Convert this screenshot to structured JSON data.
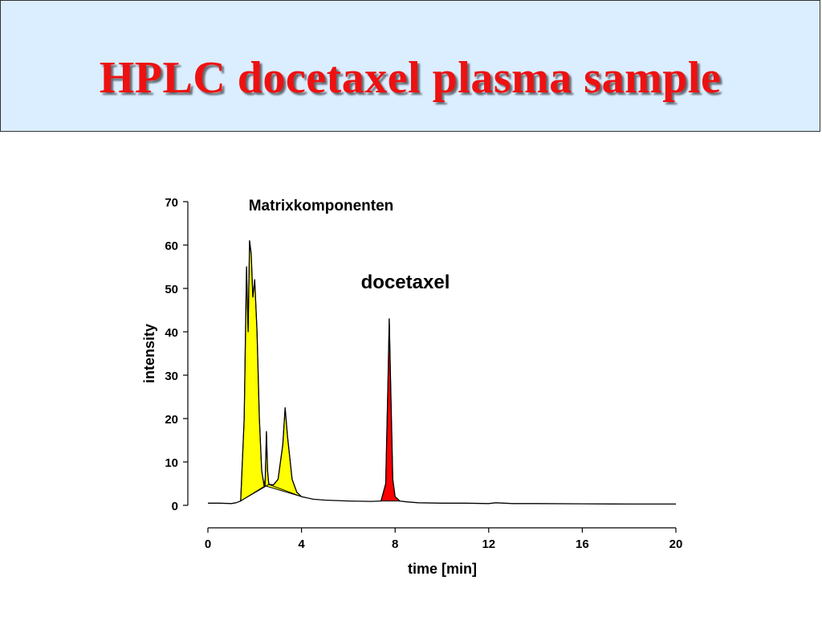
{
  "title": "HPLC docetaxel plasma sample",
  "colors": {
    "title": "#ee1111",
    "title_bg": "#dbeeff",
    "matrix_fill": "#ffff00",
    "docetaxel_fill": "#ff0000",
    "trace": "#000000"
  },
  "chart_data": {
    "type": "line",
    "xlabel": "time [min]",
    "ylabel": "intensity",
    "xlim": [
      0,
      20
    ],
    "ylim": [
      0,
      70
    ],
    "xticks": [
      0,
      4,
      8,
      12,
      16,
      20
    ],
    "yticks": [
      0,
      10,
      20,
      30,
      40,
      50,
      60,
      70
    ],
    "grid": false,
    "annotations": [
      {
        "id": "matrix",
        "text": "Matrixkomponenten"
      },
      {
        "id": "docetaxel",
        "text": "docetaxel"
      }
    ],
    "series": [
      {
        "x": [
          0,
          0.5,
          1.0,
          1.2,
          1.4,
          1.55,
          1.65,
          1.72,
          1.78,
          1.85,
          1.92,
          2.0,
          2.1,
          2.2,
          2.3,
          2.4,
          2.45,
          2.5,
          2.55,
          2.6,
          2.65,
          2.7,
          2.8,
          3.0,
          3.2,
          3.3,
          3.4,
          3.6,
          3.8,
          4.0,
          4.5,
          5.0,
          6.0,
          7.0,
          7.4,
          7.6,
          7.7,
          7.75,
          7.8,
          7.9,
          8.0,
          8.2,
          8.5,
          9.0,
          10.0,
          11.0,
          12.0,
          12.3,
          13.0,
          14.0,
          16.0,
          18.0,
          20.0
        ],
        "y": [
          0.5,
          0.5,
          0.4,
          0.6,
          1.0,
          20.0,
          55.0,
          40.0,
          61.0,
          58.0,
          48.0,
          52.0,
          40.0,
          20.0,
          8.0,
          4.5,
          6.0,
          17.0,
          8.0,
          5.0,
          4.8,
          4.8,
          4.7,
          6.0,
          14.0,
          22.5,
          16.0,
          6.0,
          3.0,
          2.0,
          1.4,
          1.2,
          1.0,
          0.9,
          1.0,
          5.0,
          30.0,
          43.0,
          30.0,
          6.0,
          2.0,
          1.0,
          0.8,
          0.6,
          0.5,
          0.5,
          0.4,
          0.6,
          0.4,
          0.4,
          0.35,
          0.3,
          0.3
        ]
      }
    ],
    "peaks": [
      {
        "label": "Matrixkomponenten",
        "fill": "yellow",
        "x_start": 1.4,
        "x_end": 2.45,
        "base_start": 1.0,
        "base_end": 4.5
      },
      {
        "fill": "yellow",
        "x_start": 2.45,
        "x_end": 4.0,
        "base_start": 4.5,
        "base_end": 2.0
      },
      {
        "label": "docetaxel",
        "fill": "red",
        "x_start": 7.4,
        "x_end": 8.2,
        "base_start": 1.0,
        "base_end": 1.0
      }
    ]
  }
}
